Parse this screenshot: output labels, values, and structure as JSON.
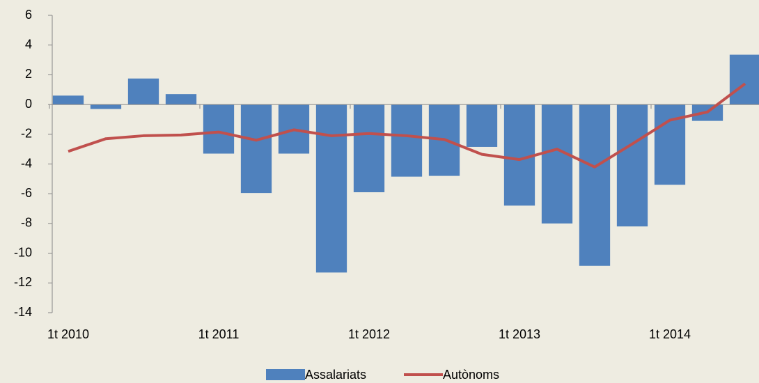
{
  "chart_data": {
    "type": "bar_line",
    "categories": [
      "1t 2010",
      null,
      null,
      null,
      "1t 2011",
      null,
      null,
      null,
      "1t 2012",
      null,
      null,
      null,
      "1t 2013",
      null,
      null,
      null,
      "1t 2014",
      null,
      null
    ],
    "series": [
      {
        "name": "Assalariats",
        "type": "bar",
        "color": "#4f81bd",
        "values": [
          0.6,
          -0.3,
          1.75,
          0.7,
          -3.3,
          -5.95,
          -3.3,
          -11.3,
          -5.9,
          -4.85,
          -4.8,
          -2.85,
          -6.8,
          -8.0,
          -10.85,
          -8.2,
          -5.4,
          -1.1,
          3.35
        ]
      },
      {
        "name": "Autònoms",
        "type": "line",
        "color": "#c0504d",
        "values": [
          -3.15,
          -2.3,
          -2.1,
          -2.05,
          -1.85,
          -2.4,
          -1.7,
          -2.1,
          -1.95,
          -2.1,
          -2.35,
          -3.35,
          -3.7,
          -3.0,
          -4.2,
          -2.65,
          -1.05,
          -0.5,
          1.4
        ]
      }
    ],
    "ylim": [
      -14,
      6
    ],
    "yticks": [
      -14,
      -12,
      -10,
      -8,
      -6,
      -4,
      -2,
      0,
      2,
      4,
      6
    ],
    "legend": "bottom"
  }
}
